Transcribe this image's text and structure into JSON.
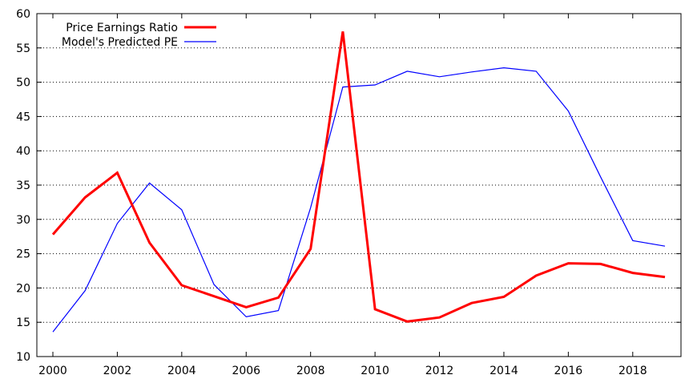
{
  "chart_data": {
    "type": "line",
    "title": "",
    "xlabel": "",
    "ylabel": "",
    "xlim": [
      2000,
      2019
    ],
    "ylim": [
      10,
      60
    ],
    "x_ticks": [
      2000,
      2002,
      2004,
      2006,
      2008,
      2010,
      2012,
      2014,
      2016,
      2018
    ],
    "y_ticks": [
      10,
      15,
      20,
      25,
      30,
      35,
      40,
      45,
      50,
      55,
      60
    ],
    "grid": "horizontal-dotted",
    "legend_position": "top-left",
    "x": [
      2000,
      2001,
      2002,
      2003,
      2004,
      2005,
      2006,
      2007,
      2008,
      2009,
      2010,
      2011,
      2012,
      2013,
      2014,
      2015,
      2016,
      2017,
      2018,
      2019
    ],
    "series": [
      {
        "name": "Price Earnings Ratio",
        "color": "#ff0000",
        "values": [
          27.8,
          33.2,
          36.8,
          26.6,
          20.4,
          18.8,
          17.2,
          18.6,
          25.7,
          57.4,
          16.9,
          15.1,
          15.7,
          17.8,
          18.7,
          21.8,
          23.6,
          23.5,
          22.2,
          21.6
        ]
      },
      {
        "name": "Model's Predicted PE",
        "color": "#0000ff",
        "values": [
          13.6,
          19.6,
          29.4,
          35.3,
          31.4,
          20.5,
          15.8,
          16.7,
          31.7,
          49.3,
          49.6,
          51.6,
          50.8,
          51.5,
          52.1,
          51.6,
          45.8,
          36.2,
          26.9,
          26.1
        ]
      }
    ]
  }
}
